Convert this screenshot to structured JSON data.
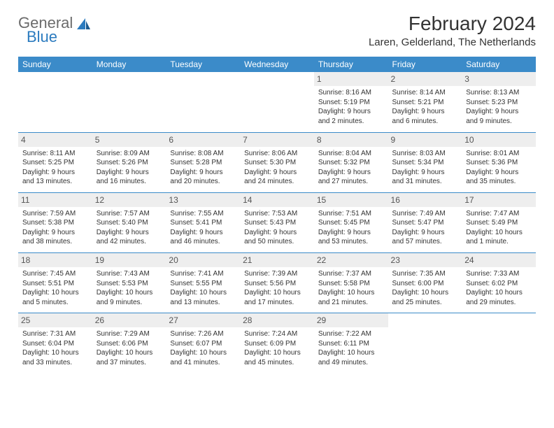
{
  "logo": {
    "line1": "General",
    "line2": "Blue"
  },
  "title": "February 2024",
  "location": "Laren, Gelderland, The Netherlands",
  "colors": {
    "header_bg": "#3b8bc9",
    "header_text": "#ffffff",
    "daynum_bg": "#eeeeee",
    "row_border": "#3b8bc9",
    "logo_gray": "#6b6b6b",
    "logo_blue": "#2b7bbf"
  },
  "day_headers": [
    "Sunday",
    "Monday",
    "Tuesday",
    "Wednesday",
    "Thursday",
    "Friday",
    "Saturday"
  ],
  "weeks": [
    [
      {
        "empty": true
      },
      {
        "empty": true
      },
      {
        "empty": true
      },
      {
        "empty": true
      },
      {
        "day": "1",
        "sunrise": "8:16 AM",
        "sunset": "5:19 PM",
        "daylight": "9 hours and 2 minutes."
      },
      {
        "day": "2",
        "sunrise": "8:14 AM",
        "sunset": "5:21 PM",
        "daylight": "9 hours and 6 minutes."
      },
      {
        "day": "3",
        "sunrise": "8:13 AM",
        "sunset": "5:23 PM",
        "daylight": "9 hours and 9 minutes."
      }
    ],
    [
      {
        "day": "4",
        "sunrise": "8:11 AM",
        "sunset": "5:25 PM",
        "daylight": "9 hours and 13 minutes."
      },
      {
        "day": "5",
        "sunrise": "8:09 AM",
        "sunset": "5:26 PM",
        "daylight": "9 hours and 16 minutes."
      },
      {
        "day": "6",
        "sunrise": "8:08 AM",
        "sunset": "5:28 PM",
        "daylight": "9 hours and 20 minutes."
      },
      {
        "day": "7",
        "sunrise": "8:06 AM",
        "sunset": "5:30 PM",
        "daylight": "9 hours and 24 minutes."
      },
      {
        "day": "8",
        "sunrise": "8:04 AM",
        "sunset": "5:32 PM",
        "daylight": "9 hours and 27 minutes."
      },
      {
        "day": "9",
        "sunrise": "8:03 AM",
        "sunset": "5:34 PM",
        "daylight": "9 hours and 31 minutes."
      },
      {
        "day": "10",
        "sunrise": "8:01 AM",
        "sunset": "5:36 PM",
        "daylight": "9 hours and 35 minutes."
      }
    ],
    [
      {
        "day": "11",
        "sunrise": "7:59 AM",
        "sunset": "5:38 PM",
        "daylight": "9 hours and 38 minutes."
      },
      {
        "day": "12",
        "sunrise": "7:57 AM",
        "sunset": "5:40 PM",
        "daylight": "9 hours and 42 minutes."
      },
      {
        "day": "13",
        "sunrise": "7:55 AM",
        "sunset": "5:41 PM",
        "daylight": "9 hours and 46 minutes."
      },
      {
        "day": "14",
        "sunrise": "7:53 AM",
        "sunset": "5:43 PM",
        "daylight": "9 hours and 50 minutes."
      },
      {
        "day": "15",
        "sunrise": "7:51 AM",
        "sunset": "5:45 PM",
        "daylight": "9 hours and 53 minutes."
      },
      {
        "day": "16",
        "sunrise": "7:49 AM",
        "sunset": "5:47 PM",
        "daylight": "9 hours and 57 minutes."
      },
      {
        "day": "17",
        "sunrise": "7:47 AM",
        "sunset": "5:49 PM",
        "daylight": "10 hours and 1 minute."
      }
    ],
    [
      {
        "day": "18",
        "sunrise": "7:45 AM",
        "sunset": "5:51 PM",
        "daylight": "10 hours and 5 minutes."
      },
      {
        "day": "19",
        "sunrise": "7:43 AM",
        "sunset": "5:53 PM",
        "daylight": "10 hours and 9 minutes."
      },
      {
        "day": "20",
        "sunrise": "7:41 AM",
        "sunset": "5:55 PM",
        "daylight": "10 hours and 13 minutes."
      },
      {
        "day": "21",
        "sunrise": "7:39 AM",
        "sunset": "5:56 PM",
        "daylight": "10 hours and 17 minutes."
      },
      {
        "day": "22",
        "sunrise": "7:37 AM",
        "sunset": "5:58 PM",
        "daylight": "10 hours and 21 minutes."
      },
      {
        "day": "23",
        "sunrise": "7:35 AM",
        "sunset": "6:00 PM",
        "daylight": "10 hours and 25 minutes."
      },
      {
        "day": "24",
        "sunrise": "7:33 AM",
        "sunset": "6:02 PM",
        "daylight": "10 hours and 29 minutes."
      }
    ],
    [
      {
        "day": "25",
        "sunrise": "7:31 AM",
        "sunset": "6:04 PM",
        "daylight": "10 hours and 33 minutes."
      },
      {
        "day": "26",
        "sunrise": "7:29 AM",
        "sunset": "6:06 PM",
        "daylight": "10 hours and 37 minutes."
      },
      {
        "day": "27",
        "sunrise": "7:26 AM",
        "sunset": "6:07 PM",
        "daylight": "10 hours and 41 minutes."
      },
      {
        "day": "28",
        "sunrise": "7:24 AM",
        "sunset": "6:09 PM",
        "daylight": "10 hours and 45 minutes."
      },
      {
        "day": "29",
        "sunrise": "7:22 AM",
        "sunset": "6:11 PM",
        "daylight": "10 hours and 49 minutes."
      },
      {
        "empty": true
      },
      {
        "empty": true
      }
    ]
  ],
  "labels": {
    "sunrise": "Sunrise:",
    "sunset": "Sunset:",
    "daylight": "Daylight:"
  }
}
